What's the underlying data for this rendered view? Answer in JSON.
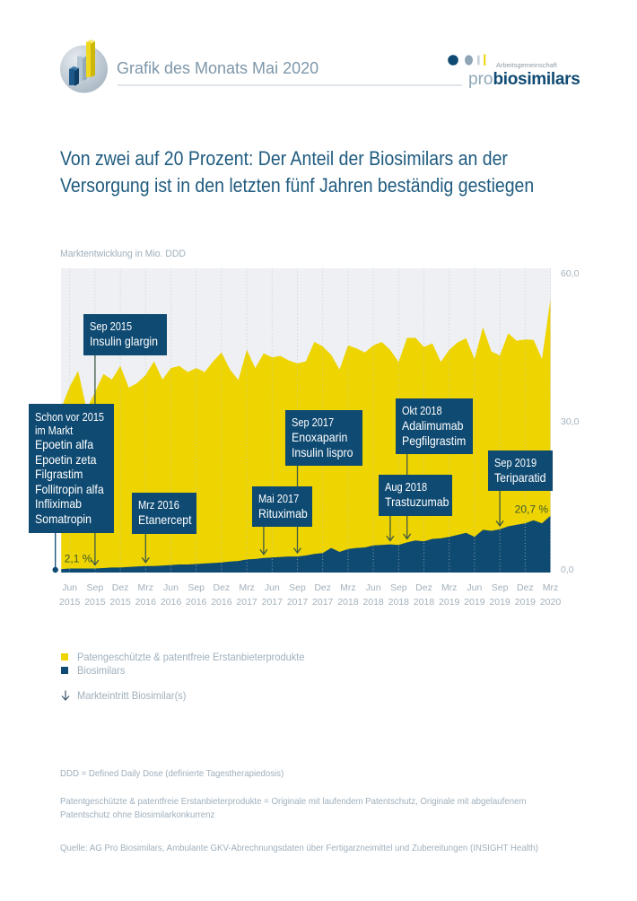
{
  "header": {
    "title": "Grafik des Monats Mai 2020",
    "logo": {
      "tagline": "Arbeitsgemeinschaft",
      "brand_prefix": "pro",
      "brand_name": "biosimilars"
    }
  },
  "headline": {
    "lines": [
      "Von zwei auf 20 Prozent: Der Anteil der Biosimilars an der",
      "Versorgung ist in den letzten fünf Jahren beständig gestiegen"
    ]
  },
  "colors": {
    "originals": "#eed400",
    "biosimilars": "#0f4a72",
    "annotation_box": "#0f4a72",
    "headline": "#1f5b7f",
    "plot_background": "#eef0f3",
    "muted_text": "#9fb0bd",
    "highlight_label": "#3b5a2c",
    "entry_arrow": "#3f5a48"
  },
  "chart_data": {
    "type": "area",
    "stacked": true,
    "title": "",
    "xlabel": "",
    "ylabel": "Marktentwicklung in Mio. DDD",
    "ylim": [
      0,
      60
    ],
    "y_axis_position": "right",
    "yticks": [
      0,
      30,
      60
    ],
    "ytick_labels": [
      "0,0",
      "30,0",
      "60,0"
    ],
    "grid": "vertical dotted at x ticks",
    "x_unit": "months since Jun 2015",
    "x": [
      -1,
      0,
      1,
      2,
      3,
      4,
      5,
      6,
      7,
      8,
      9,
      10,
      11,
      12,
      13,
      14,
      15,
      16,
      17,
      18,
      19,
      20,
      21,
      22,
      23,
      24,
      25,
      26,
      27,
      28,
      29,
      30,
      31,
      32,
      33,
      34,
      35,
      36,
      37,
      38,
      39,
      40,
      41,
      42,
      43,
      44,
      45,
      46,
      47,
      48,
      49,
      50,
      51,
      52,
      53,
      54,
      55,
      56,
      57
    ],
    "xticks": [
      0,
      3,
      6,
      9,
      12,
      15,
      18,
      21,
      24,
      27,
      30,
      33,
      36,
      39,
      42,
      45,
      48,
      51,
      54,
      57
    ],
    "xtick_labels": [
      {
        "month": "Jun",
        "year": "2015"
      },
      {
        "month": "Sep",
        "year": "2015"
      },
      {
        "month": "Dez",
        "year": "2015"
      },
      {
        "month": "Mrz",
        "year": "2016"
      },
      {
        "month": "Jun",
        "year": "2016"
      },
      {
        "month": "Sep",
        "year": "2016"
      },
      {
        "month": "Dez",
        "year": "2016"
      },
      {
        "month": "Mrz",
        "year": "2017"
      },
      {
        "month": "Jun",
        "year": "2017"
      },
      {
        "month": "Sep",
        "year": "2017"
      },
      {
        "month": "Dez",
        "year": "2017"
      },
      {
        "month": "Mrz",
        "year": "2018"
      },
      {
        "month": "Jun",
        "year": "2018"
      },
      {
        "month": "Sep",
        "year": "2018"
      },
      {
        "month": "Dez",
        "year": "2018"
      },
      {
        "month": "Mrz",
        "year": "2019"
      },
      {
        "month": "Jun",
        "year": "2019"
      },
      {
        "month": "Sep",
        "year": "2019"
      },
      {
        "month": "Dez",
        "year": "2019"
      },
      {
        "month": "Mrz",
        "year": "2020"
      }
    ],
    "series": [
      {
        "name": "Patengeschützte & patentfreie Erstanbieterprodukte",
        "color": "#eed400",
        "values": [
          32.0,
          36.2,
          39.3,
          31.7,
          35.1,
          38.6,
          37.4,
          40.1,
          35.7,
          36.5,
          38.0,
          40.7,
          37.0,
          39.2,
          39.5,
          38.3,
          39.0,
          38.1,
          40.1,
          41.8,
          38.2,
          36.0,
          41.7,
          38.0,
          40.7,
          39.8,
          40.0,
          39.0,
          38.4,
          38.6,
          42.2,
          41.1,
          38.4,
          36.3,
          40.5,
          39.7,
          38.8,
          39.8,
          40.4,
          38.7,
          36.4,
          40.7,
          40.3,
          38.7,
          38.9,
          35.1,
          37.2,
          38.3,
          38.7,
          35.4,
          40.3,
          35.7,
          34.6,
          38.4,
          36.6,
          36.6,
          35.9,
          32.7,
          43.1
        ]
      },
      {
        "name": "Biosimilars",
        "color": "#0f4a72",
        "values": [
          0.7,
          0.8,
          0.8,
          0.8,
          0.8,
          0.9,
          1.0,
          1.0,
          1.1,
          1.2,
          1.3,
          1.3,
          1.4,
          1.5,
          1.6,
          1.6,
          1.7,
          1.8,
          1.9,
          2.0,
          2.2,
          2.3,
          2.6,
          2.7,
          2.9,
          3.0,
          3.1,
          3.2,
          3.2,
          3.4,
          3.7,
          3.9,
          4.9,
          4.1,
          4.7,
          4.9,
          5.0,
          5.4,
          5.5,
          5.6,
          5.5,
          6.0,
          6.4,
          6.2,
          6.7,
          6.8,
          7.1,
          7.5,
          7.9,
          7.1,
          8.5,
          8.3,
          8.6,
          9.2,
          9.5,
          9.8,
          10.4,
          9.8,
          11.3
        ]
      }
    ],
    "value_labels": [
      {
        "text": "2,1 %",
        "x": 0,
        "series": "Biosimilars"
      },
      {
        "text": "20,7 %",
        "x": 57,
        "series": "Biosimilars"
      }
    ],
    "annotations": [
      {
        "header_lines": [
          "Schon vor 2015",
          "im Markt"
        ],
        "drugs": [
          "Epoetin alfa",
          "Epoetin zeta",
          "Filgrastim",
          "Follitropin alfa",
          "Infliximab",
          "Somatropin"
        ],
        "x": null
      },
      {
        "header_lines": [
          "Sep 2015"
        ],
        "drugs": [
          "Insulin glargin"
        ],
        "x": 3
      },
      {
        "header_lines": [
          "Mrz 2016"
        ],
        "drugs": [
          "Etanercept"
        ],
        "x": 9
      },
      {
        "header_lines": [
          "Mai 2017"
        ],
        "drugs": [
          "Rituximab"
        ],
        "x": 23
      },
      {
        "header_lines": [
          "Sep 2017"
        ],
        "drugs": [
          "Enoxaparin",
          "Insulin lispro"
        ],
        "x": 27
      },
      {
        "header_lines": [
          "Aug 2018"
        ],
        "drugs": [
          "Trastuzumab"
        ],
        "x": 38
      },
      {
        "header_lines": [
          "Okt 2018"
        ],
        "drugs": [
          "Adalimumab",
          "Pegfilgrastim"
        ],
        "x": 40
      },
      {
        "header_lines": [
          "Sep 2019"
        ],
        "drugs": [
          "Teriparatid"
        ],
        "x": 51
      }
    ]
  },
  "legend": {
    "items": [
      {
        "label": "Patengeschützte & patentfreie Erstanbieterprodukte",
        "color": "#eed400"
      },
      {
        "label": "Biosimilars",
        "color": "#0f4a72"
      }
    ],
    "arrow_icon": "arrow-down-icon",
    "arrow_label": "Markteintritt Biosimilar(s)"
  },
  "footnotes": {
    "ddd": "DDD = Defined Daily Dose (definierte Tagestherapiedosis)",
    "originals_lines": [
      "Patentgeschützte & patentfreie Erstanbieterprodukte = Originale mit laufendem Patentschutz, Originale mit abgelaufenem",
      "Patentschutz ohne Biosimilarkonkurrenz"
    ],
    "source": "Quelle: AG Pro Biosimilars, Ambulante GKV-Abrechnungsdaten über Fertigarzneimittel und Zubereitungen (INSIGHT Health)"
  }
}
